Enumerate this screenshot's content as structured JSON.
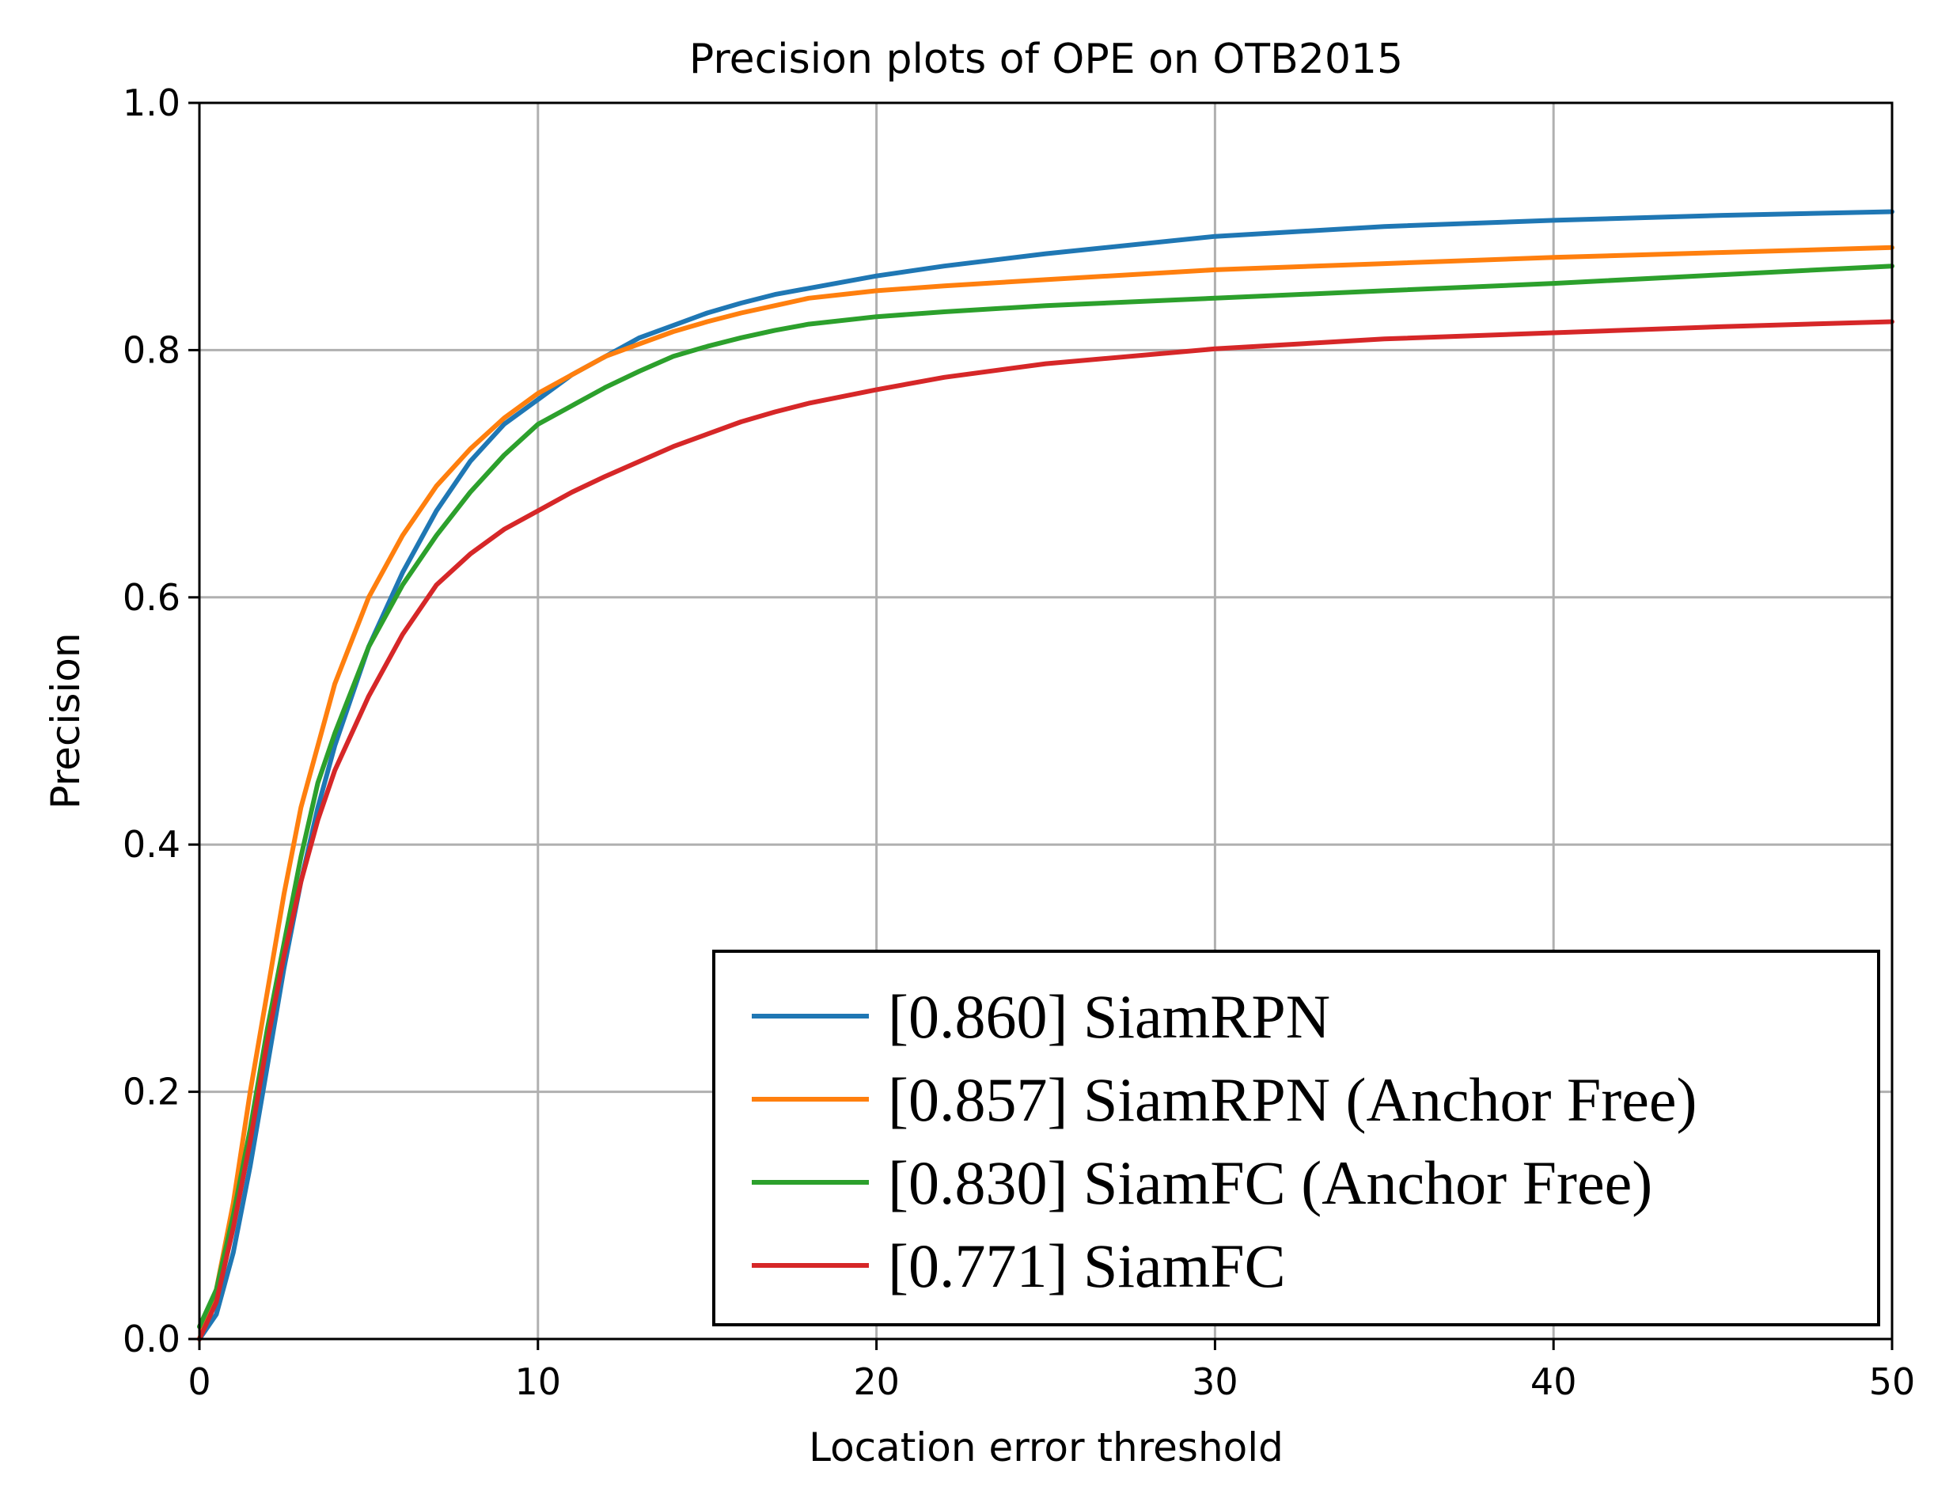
{
  "chart_data": {
    "type": "line",
    "title": "Precision plots of OPE on OTB2015",
    "xlabel": "Location error threshold",
    "ylabel": "Precision",
    "xlim": [
      0,
      50
    ],
    "ylim": [
      0.0,
      1.0
    ],
    "grid": true,
    "legend_position": "bottom-right",
    "x_ticks": [
      0,
      10,
      20,
      30,
      40,
      50
    ],
    "x_tick_labels": [
      "0",
      "10",
      "20",
      "30",
      "40",
      "50"
    ],
    "y_ticks": [
      0.0,
      0.2,
      0.4,
      0.6,
      0.8,
      1.0
    ],
    "y_tick_labels": [
      "0.0",
      "0.2",
      "0.4",
      "0.6",
      "0.8",
      "1.0"
    ],
    "x": [
      0,
      0.5,
      1,
      1.5,
      2,
      2.5,
      3,
      3.5,
      4,
      5,
      6,
      7,
      8,
      9,
      10,
      11,
      12,
      13,
      14,
      15,
      16,
      17,
      18,
      20,
      22,
      25,
      30,
      35,
      40,
      45,
      50
    ],
    "series": [
      {
        "name": "[0.860] SiamRPN",
        "color": "#1f77b4",
        "values": [
          0.0,
          0.02,
          0.07,
          0.14,
          0.22,
          0.3,
          0.37,
          0.43,
          0.48,
          0.56,
          0.62,
          0.67,
          0.71,
          0.74,
          0.76,
          0.78,
          0.795,
          0.81,
          0.82,
          0.83,
          0.838,
          0.845,
          0.85,
          0.86,
          0.868,
          0.878,
          0.892,
          0.9,
          0.905,
          0.909,
          0.912
        ]
      },
      {
        "name": "[0.857] SiamRPN (Anchor Free)",
        "color": "#ff7f0e",
        "values": [
          0.0,
          0.04,
          0.11,
          0.2,
          0.28,
          0.36,
          0.43,
          0.48,
          0.53,
          0.6,
          0.65,
          0.69,
          0.72,
          0.745,
          0.765,
          0.78,
          0.795,
          0.805,
          0.815,
          0.823,
          0.83,
          0.836,
          0.842,
          0.848,
          0.852,
          0.857,
          0.865,
          0.87,
          0.875,
          0.879,
          0.883
        ]
      },
      {
        "name": "[0.830] SiamFC (Anchor Free)",
        "color": "#2ca02c",
        "values": [
          0.01,
          0.04,
          0.1,
          0.17,
          0.25,
          0.32,
          0.39,
          0.45,
          0.49,
          0.56,
          0.61,
          0.65,
          0.685,
          0.715,
          0.74,
          0.755,
          0.77,
          0.783,
          0.795,
          0.803,
          0.81,
          0.816,
          0.821,
          0.827,
          0.831,
          0.836,
          0.842,
          0.848,
          0.854,
          0.861,
          0.868
        ]
      },
      {
        "name": "[0.771] SiamFC",
        "color": "#d62728",
        "values": [
          0.0,
          0.03,
          0.09,
          0.16,
          0.24,
          0.31,
          0.37,
          0.42,
          0.46,
          0.52,
          0.57,
          0.61,
          0.635,
          0.655,
          0.67,
          0.685,
          0.698,
          0.71,
          0.722,
          0.732,
          0.742,
          0.75,
          0.757,
          0.768,
          0.778,
          0.789,
          0.801,
          0.809,
          0.814,
          0.819,
          0.823
        ]
      }
    ]
  }
}
